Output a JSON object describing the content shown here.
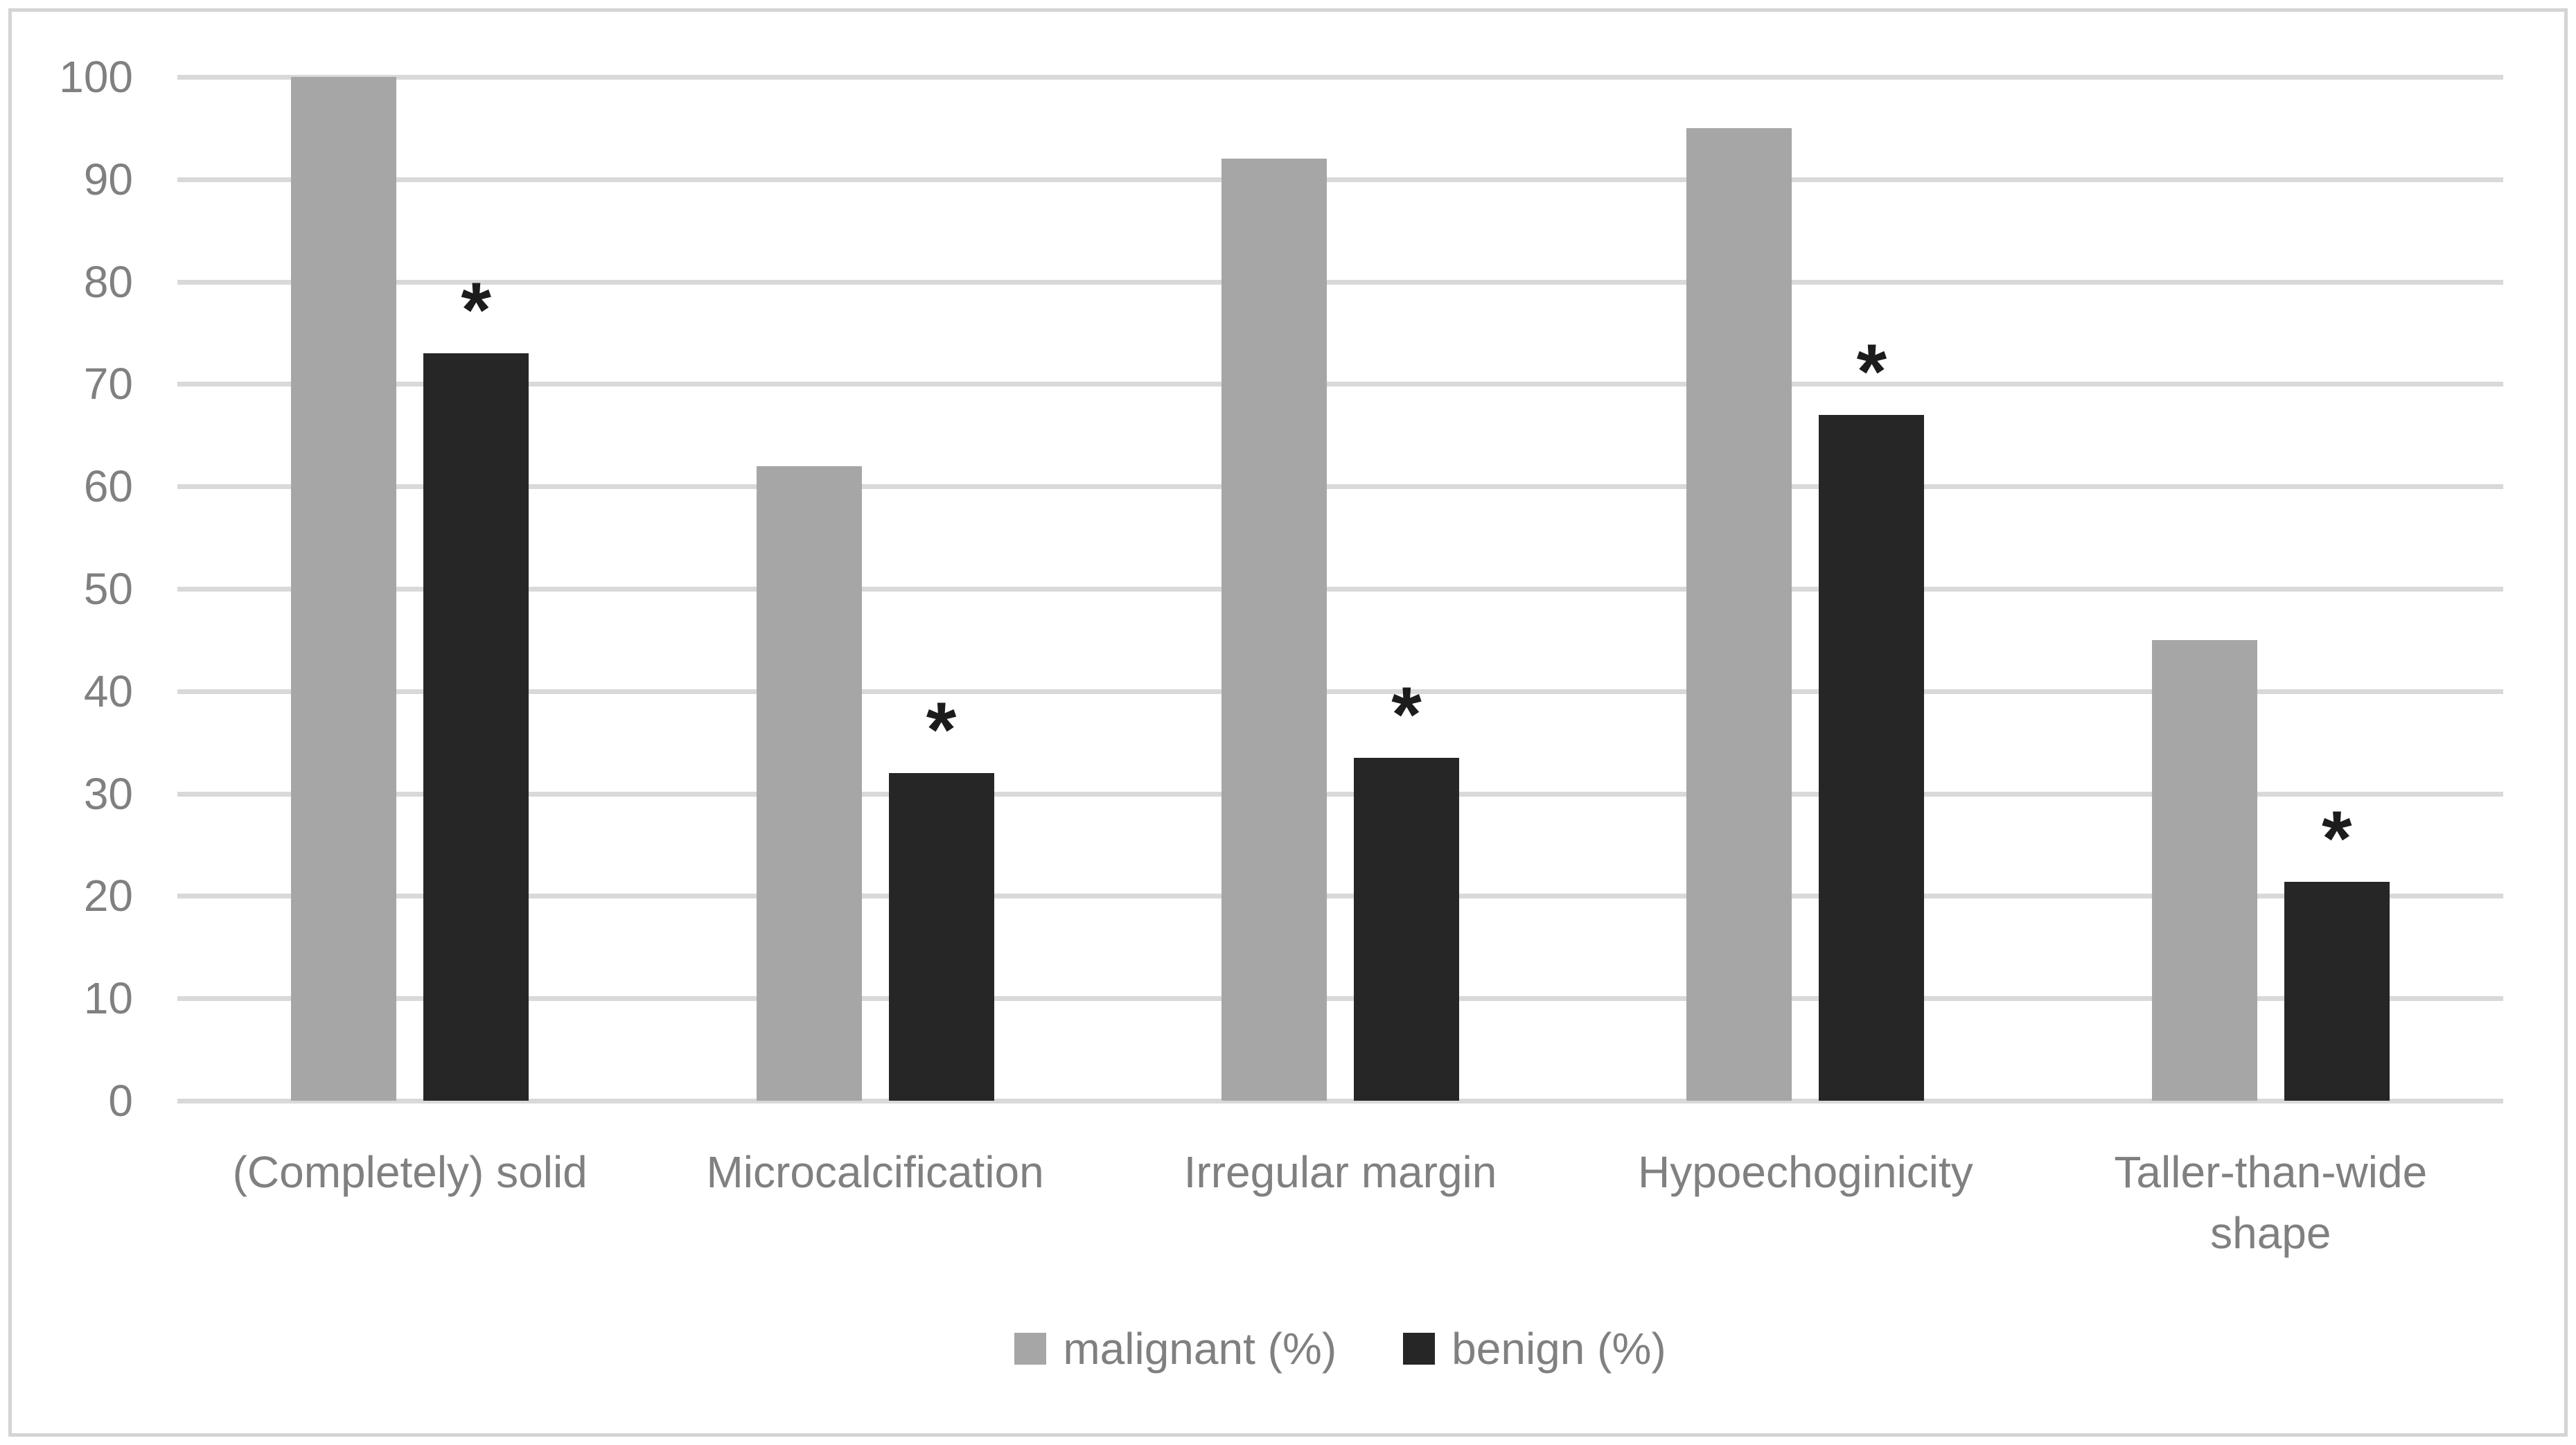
{
  "chart_data": {
    "type": "bar",
    "title": "",
    "xlabel": "",
    "ylabel": "",
    "categories": [
      "(Completely) solid",
      "Microcalcification",
      "Irregular margin",
      "Hypoechoginicity",
      "Taller-than-wide\nshape"
    ],
    "series": [
      {
        "name": "malignant (%)",
        "color": "#a6a6a6",
        "values": [
          100,
          62,
          92,
          95,
          45
        ],
        "significance_marks": [
          false,
          false,
          false,
          false,
          false
        ]
      },
      {
        "name": "benign (%)",
        "color": "#262626",
        "values": [
          73,
          32,
          33.5,
          67,
          21.4
        ],
        "significance_marks": [
          true,
          true,
          true,
          true,
          true
        ]
      }
    ],
    "significance_marker": "*",
    "ylim": [
      0,
      100
    ],
    "yticks": [
      "0",
      "10",
      "20",
      "30",
      "40",
      "50",
      "60",
      "70",
      "80",
      "90",
      "100"
    ],
    "grid": true,
    "legend_position": "bottom-center",
    "colors": {
      "gridline": "#d9d9d9",
      "axis_text": "#808080",
      "border": "#d4d4d4",
      "background": "#ffffff"
    }
  }
}
